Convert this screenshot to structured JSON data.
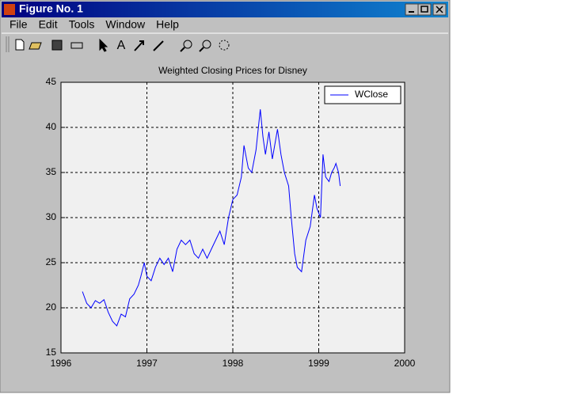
{
  "window": {
    "title": "Figure No. 1",
    "menu": [
      "File",
      "Edit",
      "Tools",
      "Window",
      "Help"
    ]
  },
  "chart_data": {
    "type": "line",
    "title": "Weighted Closing Prices for Disney",
    "x": [
      1996.25,
      1996.3,
      1996.35,
      1996.4,
      1996.45,
      1996.5,
      1996.55,
      1996.6,
      1996.65,
      1996.7,
      1996.75,
      1996.8,
      1996.85,
      1996.9,
      1996.93,
      1996.97,
      1997.0,
      1997.05,
      1997.1,
      1997.15,
      1997.2,
      1997.25,
      1997.3,
      1997.35,
      1997.4,
      1997.45,
      1997.5,
      1997.55,
      1997.6,
      1997.65,
      1997.7,
      1997.75,
      1997.8,
      1997.85,
      1997.9,
      1997.95,
      1998.0,
      1998.05,
      1998.1,
      1998.13,
      1998.18,
      1998.22,
      1998.27,
      1998.32,
      1998.35,
      1998.38,
      1998.42,
      1998.46,
      1998.52,
      1998.56,
      1998.6,
      1998.65,
      1998.68,
      1998.72,
      1998.75,
      1998.8,
      1998.85,
      1998.9,
      1998.95,
      1998.98,
      1999.02,
      1999.05,
      1999.08,
      1999.12,
      1999.15,
      1999.18,
      1999.2,
      1999.23,
      1999.25
    ],
    "series": [
      {
        "name": "WClose",
        "color": "#0000ff",
        "values": [
          21.8,
          20.5,
          20.0,
          20.8,
          20.5,
          20.9,
          19.5,
          18.5,
          18.0,
          19.3,
          19.0,
          21.0,
          21.5,
          22.5,
          23.5,
          25.0,
          23.5,
          23.0,
          24.5,
          25.5,
          24.8,
          25.5,
          24.0,
          26.5,
          27.5,
          27.0,
          27.5,
          26.0,
          25.5,
          26.5,
          25.5,
          26.5,
          27.5,
          28.5,
          27.0,
          30.0,
          32.0,
          32.5,
          34.5,
          38.0,
          35.5,
          35.0,
          37.5,
          42.0,
          39.0,
          37.0,
          39.5,
          36.5,
          39.8,
          37.0,
          35.0,
          33.5,
          30.0,
          26.0,
          24.5,
          24.0,
          27.5,
          29.0,
          32.5,
          31.0,
          30.0,
          37.0,
          34.5,
          34.0,
          35.0,
          35.5,
          36.0,
          35.0,
          33.5
        ]
      }
    ],
    "xlim": [
      1996,
      2000
    ],
    "xticks": [
      1996,
      1997,
      1998,
      1999,
      2000
    ],
    "ylim": [
      15,
      45
    ],
    "yticks": [
      15,
      20,
      25,
      30,
      35,
      40,
      45
    ],
    "grid": true,
    "legend": "upper-right"
  }
}
